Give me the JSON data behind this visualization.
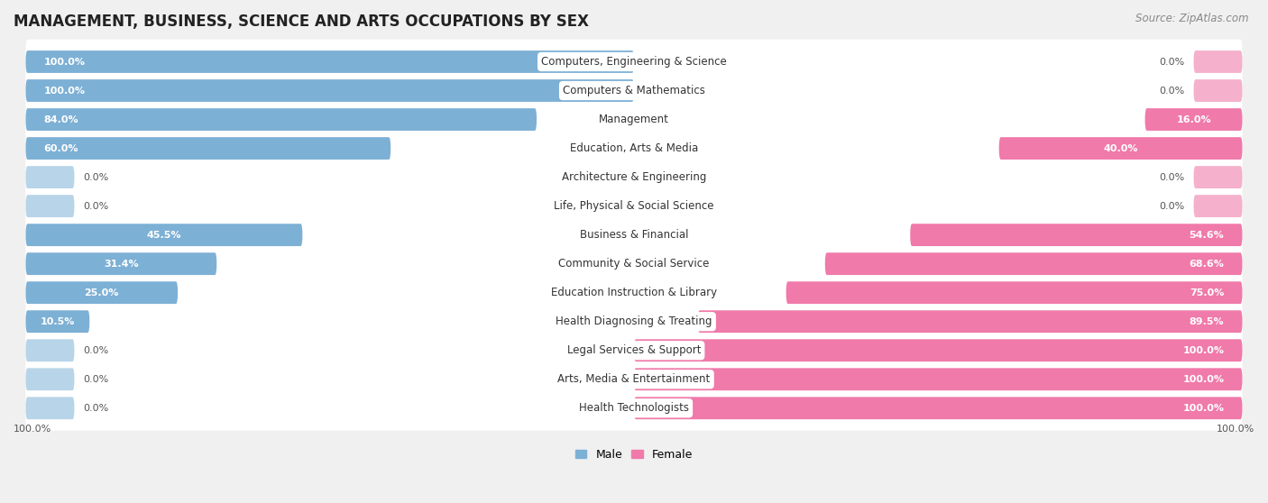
{
  "title": "MANAGEMENT, BUSINESS, SCIENCE AND ARTS OCCUPATIONS BY SEX",
  "source": "Source: ZipAtlas.com",
  "categories": [
    "Computers, Engineering & Science",
    "Computers & Mathematics",
    "Management",
    "Education, Arts & Media",
    "Architecture & Engineering",
    "Life, Physical & Social Science",
    "Business & Financial",
    "Community & Social Service",
    "Education Instruction & Library",
    "Health Diagnosing & Treating",
    "Legal Services & Support",
    "Arts, Media & Entertainment",
    "Health Technologists"
  ],
  "male_pct": [
    100.0,
    100.0,
    84.0,
    60.0,
    0.0,
    0.0,
    45.5,
    31.4,
    25.0,
    10.5,
    0.0,
    0.0,
    0.0
  ],
  "female_pct": [
    0.0,
    0.0,
    16.0,
    40.0,
    0.0,
    0.0,
    54.6,
    68.6,
    75.0,
    89.5,
    100.0,
    100.0,
    100.0
  ],
  "male_color": "#7db0d5",
  "female_color": "#f07aaa",
  "male_stub_color": "#b8d4e8",
  "female_stub_color": "#f5b0cb",
  "male_label": "Male",
  "female_label": "Female",
  "bg_color": "#f0f0f0",
  "row_bg_color": "#ffffff",
  "title_fontsize": 12,
  "source_fontsize": 8.5,
  "label_fontsize": 8.5,
  "pct_fontsize": 8,
  "legend_fontsize": 9,
  "axis_label_fontsize": 8
}
